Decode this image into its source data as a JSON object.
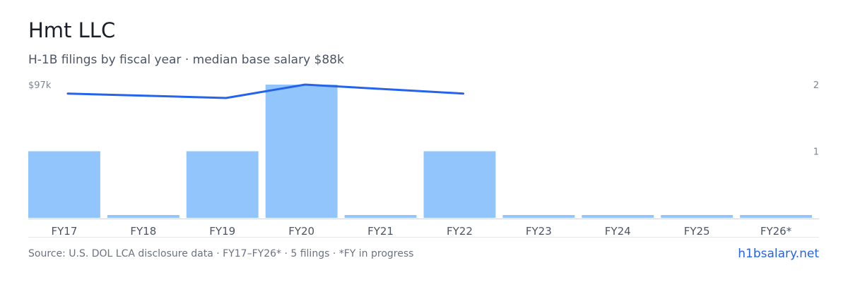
{
  "header": {
    "title": "Hmt LLC",
    "subtitle": "H-1B filings by fiscal year · median base salary $88k"
  },
  "footer": {
    "source": "Source: U.S. DOL LCA disclosure data · FY17–FY26* · 5 filings · *FY in progress",
    "site": "h1bsalary.net"
  },
  "colors": {
    "bar": "#93c5fd",
    "line": "#2563eb",
    "axis": "#d1d5db"
  },
  "chart_data": {
    "type": "bar",
    "categories": [
      "FY17",
      "FY18",
      "FY19",
      "FY20",
      "FY21",
      "FY22",
      "FY23",
      "FY24",
      "FY25",
      "FY26*"
    ],
    "series": [
      {
        "values": [
          1,
          0,
          1,
          2,
          0,
          1,
          0,
          0,
          0,
          0
        ]
      },
      {
        "type": "line",
        "axis": "left",
        "values": [
          91,
          null,
          88,
          97,
          null,
          91,
          null,
          null,
          null,
          null
        ]
      }
    ],
    "y_left_label": "$97k",
    "y_right_ticks": [
      "1",
      "2"
    ],
    "y_right_range": [
      0,
      2
    ],
    "grid": false
  }
}
